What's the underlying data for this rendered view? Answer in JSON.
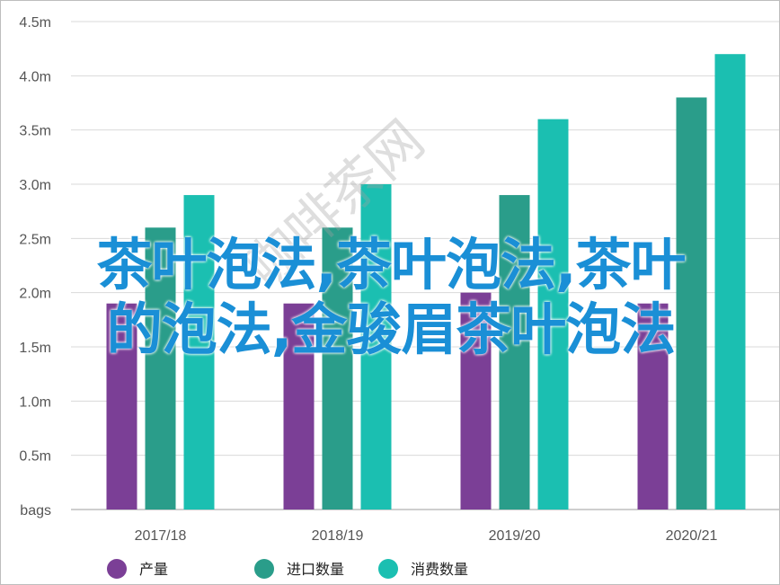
{
  "overlay": {
    "line1": "茶叶泡法,茶叶泡法,茶叶",
    "line2": "的泡法,金骏眉茶叶泡法"
  },
  "watermark": {
    "text": "咖啡茶网"
  },
  "chart_data": {
    "type": "bar",
    "categories": [
      "2017/18",
      "2018/19",
      "2019/20",
      "2020/21"
    ],
    "series": [
      {
        "name": "产量",
        "color": "#7b3f96",
        "values": [
          1.9,
          1.9,
          2.0,
          1.9
        ]
      },
      {
        "name": "进口数量",
        "color": "#2a9d8a",
        "values": [
          2.6,
          2.6,
          2.9,
          3.8
        ]
      },
      {
        "name": "消费数量",
        "color": "#1bbfb1",
        "values": [
          2.9,
          3.0,
          3.6,
          4.2
        ]
      }
    ],
    "ylim": [
      0,
      4.5
    ],
    "yticks": [
      "bags",
      "0.5m",
      "1.0m",
      "1.5m",
      "2.0m",
      "2.5m",
      "3.0m",
      "3.5m",
      "4.0m",
      "4.5m"
    ],
    "grid": true,
    "legend": "bottom"
  }
}
